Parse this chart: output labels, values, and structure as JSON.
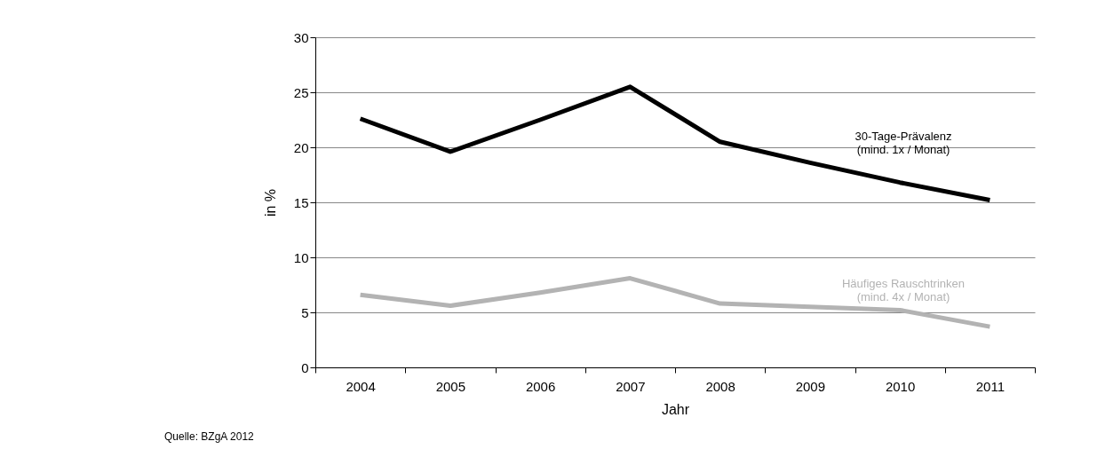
{
  "chart_data": {
    "type": "line",
    "xlabel": "Jahr",
    "ylabel": "in %",
    "categories": [
      "2004",
      "2005",
      "2006",
      "2007",
      "2008",
      "2009",
      "2010",
      "2011"
    ],
    "series": [
      {
        "name": "30-Tage-Prävalenz\n(mind. 1x / Monat)",
        "color": "#000000",
        "values": [
          22.6,
          19.6,
          22.5,
          25.5,
          20.5,
          18.6,
          16.8,
          15.2
        ]
      },
      {
        "name": "Häufiges Rauschtrinken\n(mind. 4x / Monat)",
        "color": "#b3b3b3",
        "values": [
          6.6,
          5.6,
          6.8,
          8.1,
          5.8,
          5.5,
          5.2,
          3.7
        ]
      }
    ],
    "ylim": [
      0,
      30
    ],
    "yticks": [
      0,
      5,
      10,
      15,
      20,
      25,
      30
    ],
    "grid": "y",
    "legend": false,
    "marker": "none",
    "line_style": "solid",
    "annotations": [
      "Quelle: BZgA 2012"
    ]
  }
}
